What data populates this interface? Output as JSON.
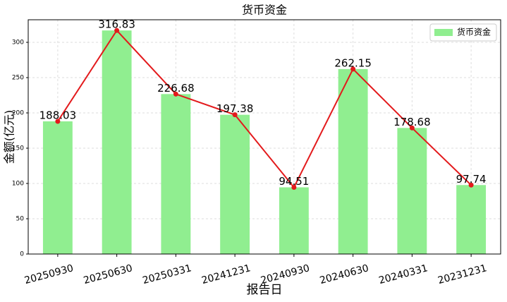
{
  "chart_data": {
    "type": "bar",
    "title": "货币资金",
    "x_label": "报告日",
    "y_label": "金额(亿元)",
    "categories": [
      "20250930",
      "20250630",
      "20250331",
      "20241231",
      "20240930",
      "20240630",
      "20240331",
      "20231231"
    ],
    "series": [
      {
        "name": "货币资金",
        "color": "#90ee90",
        "values": [
          188.03,
          316.83,
          226.68,
          197.38,
          94.51,
          262.15,
          178.68,
          97.74
        ]
      }
    ],
    "line_color": "#e31a1c",
    "ylim": [
      0,
      332
    ],
    "yticks": [
      0,
      50,
      100,
      150,
      200,
      250,
      300
    ],
    "grid": true,
    "legend": "upper right"
  }
}
